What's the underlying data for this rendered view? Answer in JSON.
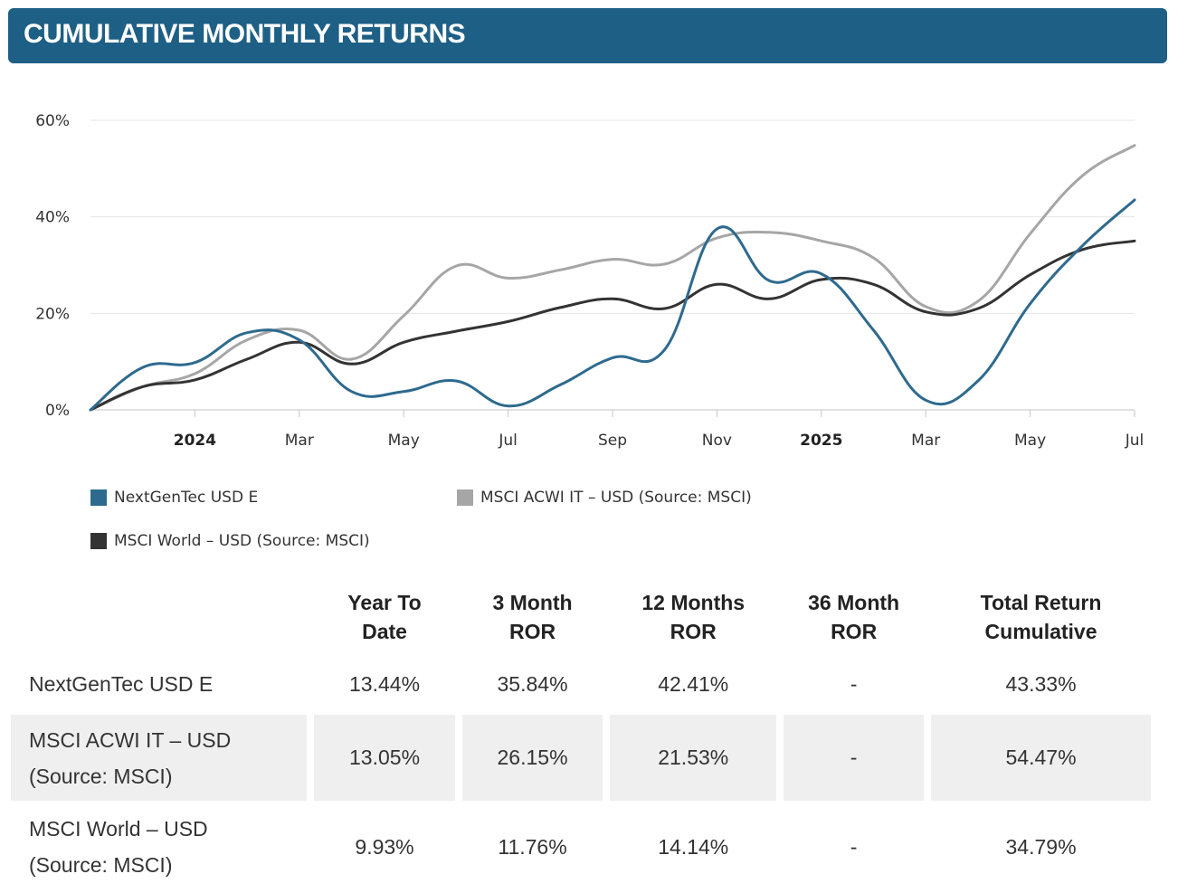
{
  "header": {
    "title": "CUMULATIVE MONTHLY RETURNS"
  },
  "chart_data": {
    "type": "line",
    "title": "Cumulative Monthly Returns",
    "ylim": [
      0,
      60
    ],
    "yticks": [
      0,
      20,
      40,
      60
    ],
    "ytick_labels": [
      "0%",
      "20%",
      "40%",
      "60%"
    ],
    "xlim": [
      0,
      20
    ],
    "xticks": [
      {
        "at": 2,
        "label": "2024",
        "bold": true
      },
      {
        "at": 4,
        "label": "Mar",
        "bold": false
      },
      {
        "at": 6,
        "label": "May",
        "bold": false
      },
      {
        "at": 8,
        "label": "Jul",
        "bold": false
      },
      {
        "at": 10,
        "label": "Sep",
        "bold": false
      },
      {
        "at": 12,
        "label": "Nov",
        "bold": false
      },
      {
        "at": 14,
        "label": "2025",
        "bold": true
      },
      {
        "at": 16,
        "label": "Mar",
        "bold": false
      },
      {
        "at": 18,
        "label": "May",
        "bold": false
      },
      {
        "at": 20,
        "label": "Jul",
        "bold": false
      }
    ],
    "grid": true,
    "series": [
      {
        "name": "MSCI ACWI IT – USD (Source: MSCI)",
        "color": "#a6a6a6",
        "values": [
          0,
          4.8,
          7.5,
          14.5,
          16.5,
          10.5,
          19.5,
          29.8,
          27.3,
          29,
          31.2,
          30.2,
          35.6,
          36.8,
          35,
          31.5,
          21.4,
          22.5,
          36.5,
          48.5,
          54.8
        ]
      },
      {
        "name": "MSCI World – USD (Source: MSCI)",
        "color": "#333333",
        "values": [
          0,
          4.8,
          6.2,
          10.5,
          14,
          9.5,
          14,
          16.3,
          18.3,
          21.2,
          23,
          21,
          26,
          23,
          27,
          26,
          20.3,
          21,
          28,
          33.2,
          35
        ]
      },
      {
        "name": "NextGenTec USD E",
        "color": "#2e6a8e",
        "values": [
          0,
          8.8,
          9.8,
          16,
          14.5,
          3.8,
          3.8,
          6,
          0.8,
          5.2,
          10.8,
          12.5,
          37.5,
          26.8,
          28.2,
          16.5,
          2,
          6,
          22,
          34,
          43.5
        ]
      }
    ]
  },
  "legend": [
    {
      "label": "NextGenTec USD E",
      "color": "#2e6a8e"
    },
    {
      "label": "MSCI ACWI IT – USD (Source: MSCI)",
      "color": "#a6a6a6"
    },
    {
      "label": "MSCI World – USD (Source: MSCI)",
      "color": "#333333"
    }
  ],
  "table": {
    "headers": [
      "Year To Date",
      "3 Month ROR",
      "12 Months ROR",
      "36 Month ROR",
      "Total Return Cumulative"
    ],
    "header_lines": [
      [
        "Year To",
        "Date"
      ],
      [
        "3 Month",
        "ROR"
      ],
      [
        "12 Months",
        "ROR"
      ],
      [
        "36 Month",
        "ROR"
      ],
      [
        "Total Return",
        "Cumulative"
      ]
    ],
    "rows": [
      {
        "name_lines": [
          "NextGenTec USD E"
        ],
        "values": [
          "13.44%",
          "35.84%",
          "42.41%",
          "-",
          "43.33%"
        ]
      },
      {
        "name_lines": [
          "MSCI ACWI IT – USD",
          "(Source: MSCI)"
        ],
        "values": [
          "13.05%",
          "26.15%",
          "21.53%",
          "-",
          "54.47%"
        ]
      },
      {
        "name_lines": [
          "MSCI World – USD",
          "(Source: MSCI)"
        ],
        "values": [
          "9.93%",
          "11.76%",
          "14.14%",
          "-",
          "34.79%"
        ]
      }
    ]
  }
}
